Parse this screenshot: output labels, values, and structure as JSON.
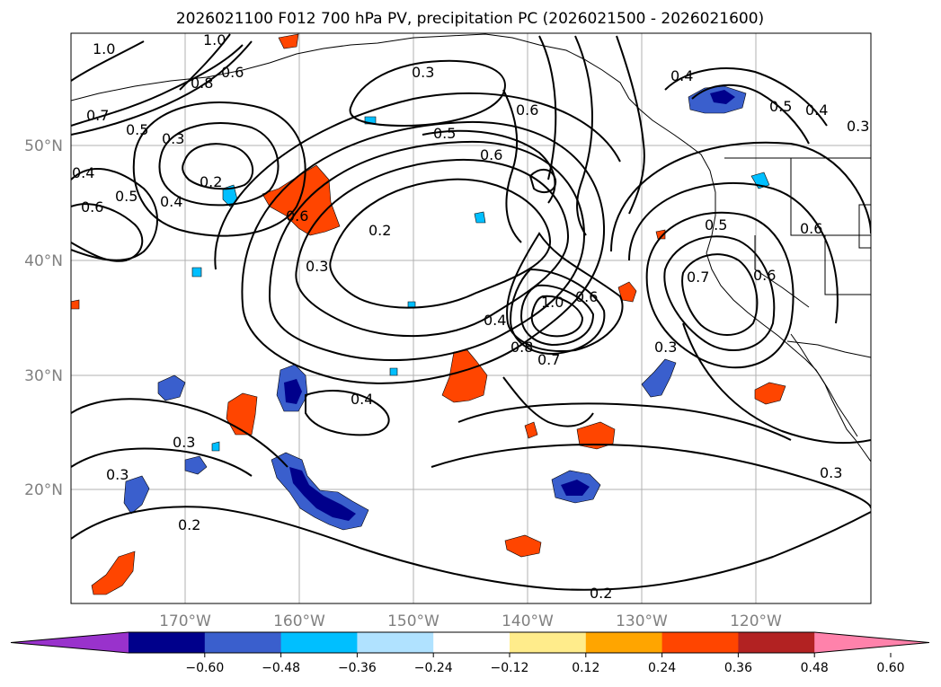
{
  "title": "2026021100 F012 700 hPa PV, precipitation PC (2026021500 - 2026021600)",
  "map": {
    "lat_labels": [
      "50°N",
      "40°N",
      "30°N",
      "20°N"
    ],
    "lon_labels": [
      "170°W",
      "160°W",
      "150°W",
      "140°W",
      "130°W",
      "120°W"
    ],
    "grid": true,
    "contour_labels": [
      "1.0",
      "1.0",
      "0.7",
      "0.5",
      "0.8",
      "0.6",
      "0.3",
      "0.3",
      "0.5",
      "0.6",
      "0.6",
      "0.4",
      "0.5",
      "0.4",
      "0.3",
      "0.2",
      "0.5",
      "0.6",
      "0.4",
      "0.4",
      "0.6",
      "0.2",
      "0.3",
      "0.6",
      "0.5",
      "0.7",
      "0.6",
      "1.0",
      "0.6",
      "0.4",
      "0.8",
      "0.7",
      "0.3",
      "0.4",
      "0.3",
      "0.3",
      "0.2",
      "0.3",
      "0.2"
    ]
  },
  "colorbar": {
    "ticks": [
      "−0.60",
      "−0.48",
      "−0.36",
      "−0.24",
      "−0.12",
      "0.12",
      "0.24",
      "0.36",
      "0.48",
      "0.60"
    ],
    "colors": [
      "#9932cc",
      "#00008b",
      "#3a5fcd",
      "#00bfff",
      "#b0e2ff",
      "#ffffff",
      "#ffec8b",
      "#ffa500",
      "#ff4500",
      "#b22222",
      "#ff82ab"
    ],
    "extend": "both"
  },
  "precip_colors": {
    "strong_negative": "#00008b",
    "negative": "#3a5fcd",
    "weak_negative": "#00bfff",
    "faint_negative": "#b0e2ff",
    "faint_positive": "#ffec8b",
    "weak_positive": "#ffa500",
    "positive": "#ff4500"
  }
}
